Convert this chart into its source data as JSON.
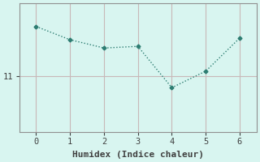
{
  "x": [
    0,
    1,
    2,
    3,
    4,
    5,
    6
  ],
  "y": [
    12.5,
    12.1,
    11.85,
    11.9,
    10.65,
    11.15,
    12.15
  ],
  "line_color": "#2d7d72",
  "marker": "D",
  "markersize": 2.5,
  "linewidth": 1.0,
  "linestyle": ":",
  "xlabel": "Humidex (Indice chaleur)",
  "xlabel_fontsize": 8,
  "bg_color": "#d8f5f0",
  "grid_color": "#c8b8b8",
  "axis_color": "#909090",
  "tick_color": "#404040",
  "ytick_label": "11",
  "ytick_value": 11.0,
  "xlim": [
    -0.5,
    6.5
  ],
  "ylim": [
    9.3,
    13.2
  ],
  "xticks": [
    0,
    1,
    2,
    3,
    4,
    5,
    6
  ],
  "yticks": [
    11.0
  ]
}
